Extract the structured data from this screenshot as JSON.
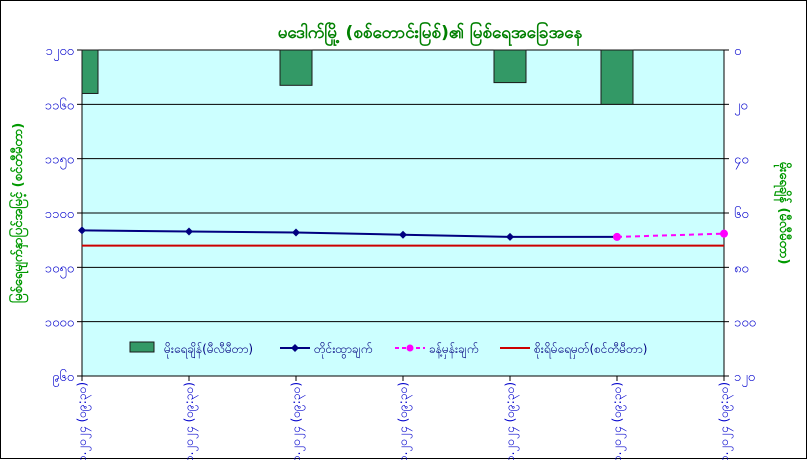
{
  "chart_data": {
    "type": "bar+line",
    "title": "မဒေါက်မြို့ (စစ်တောင်းမြစ်)၏ မြစ်ရေအခြေအနေ",
    "ylabel_left": "မြစ်ရေမျက်နှာပြင်အမြင့် (စင်တီမီတာ)",
    "ylabel_right": "မိုးရေချိန် (မီလီမီတာ)",
    "left_axis": {
      "min": 960,
      "max": 1200,
      "ticks": [
        960,
        1000,
        1050,
        1100,
        1150,
        1160,
        1200
      ],
      "tick_labels": [
        "၉၆၀",
        "၁၀၀၀",
        "၁၀၅၀",
        "၁၁၀၀",
        "၁၁၅၀",
        "၁၁၆၀",
        "၁၂၀၀"
      ]
    },
    "right_axis": {
      "min": 0,
      "max": 120,
      "reversed": true,
      "ticks": [
        0,
        20,
        40,
        60,
        80,
        100,
        120
      ],
      "tick_labels": [
        "၀",
        "၂၀",
        "၄၀",
        "၆၀",
        "၈၀",
        "၁၀၀",
        "၁၂၀"
      ]
    },
    "categories": [
      "၁.၁၀.၂၀၂၄ (၀၉:၃၀)",
      "၂.၁၀.၂၀၂၄ (၀၉:၃၀)",
      "၃.၁၀.၂၀၂၄ (၀၉:၃၀)",
      "၄.၁၀.၂၀၂၄ (၀၉:၃၀)",
      "၅.၁၀.၂၀၂၄ (၀၉:၃၀)",
      "၆.၁၀.၂၀၂၄ (၀၉:၃၀)",
      "၇.၁၀.၂၀၂၄ (၀၉:၃၀)"
    ],
    "series": [
      {
        "name": "မိုးရေချိန်(မီလီမီတာ)",
        "kind": "bar",
        "axis": "right",
        "color": "#339966",
        "values": [
          16,
          0,
          13,
          0,
          12,
          20,
          0
        ]
      },
      {
        "name": "တိုင်းထွာချက်",
        "kind": "line",
        "axis": "left",
        "color": "#000080",
        "values": [
          1084,
          1083,
          1082,
          1080,
          1078,
          1078,
          null
        ]
      },
      {
        "name": "ခန့်မှန်းချက်",
        "kind": "line-dashed",
        "axis": "left",
        "color": "#ff00ff",
        "values": [
          null,
          null,
          null,
          null,
          null,
          1078,
          1081
        ]
      },
      {
        "name": "စိုးရိမ်ရေမှတ်(စင်တီမီတာ)",
        "kind": "hline",
        "axis": "left",
        "color": "#cc0000",
        "value": 1070
      }
    ],
    "plot_background": "#ccffff",
    "title_color": "#008000",
    "axis_label_color": "#009900",
    "tick_label_color": "#0000cc",
    "grid": true,
    "legend_placement": "bottom"
  }
}
